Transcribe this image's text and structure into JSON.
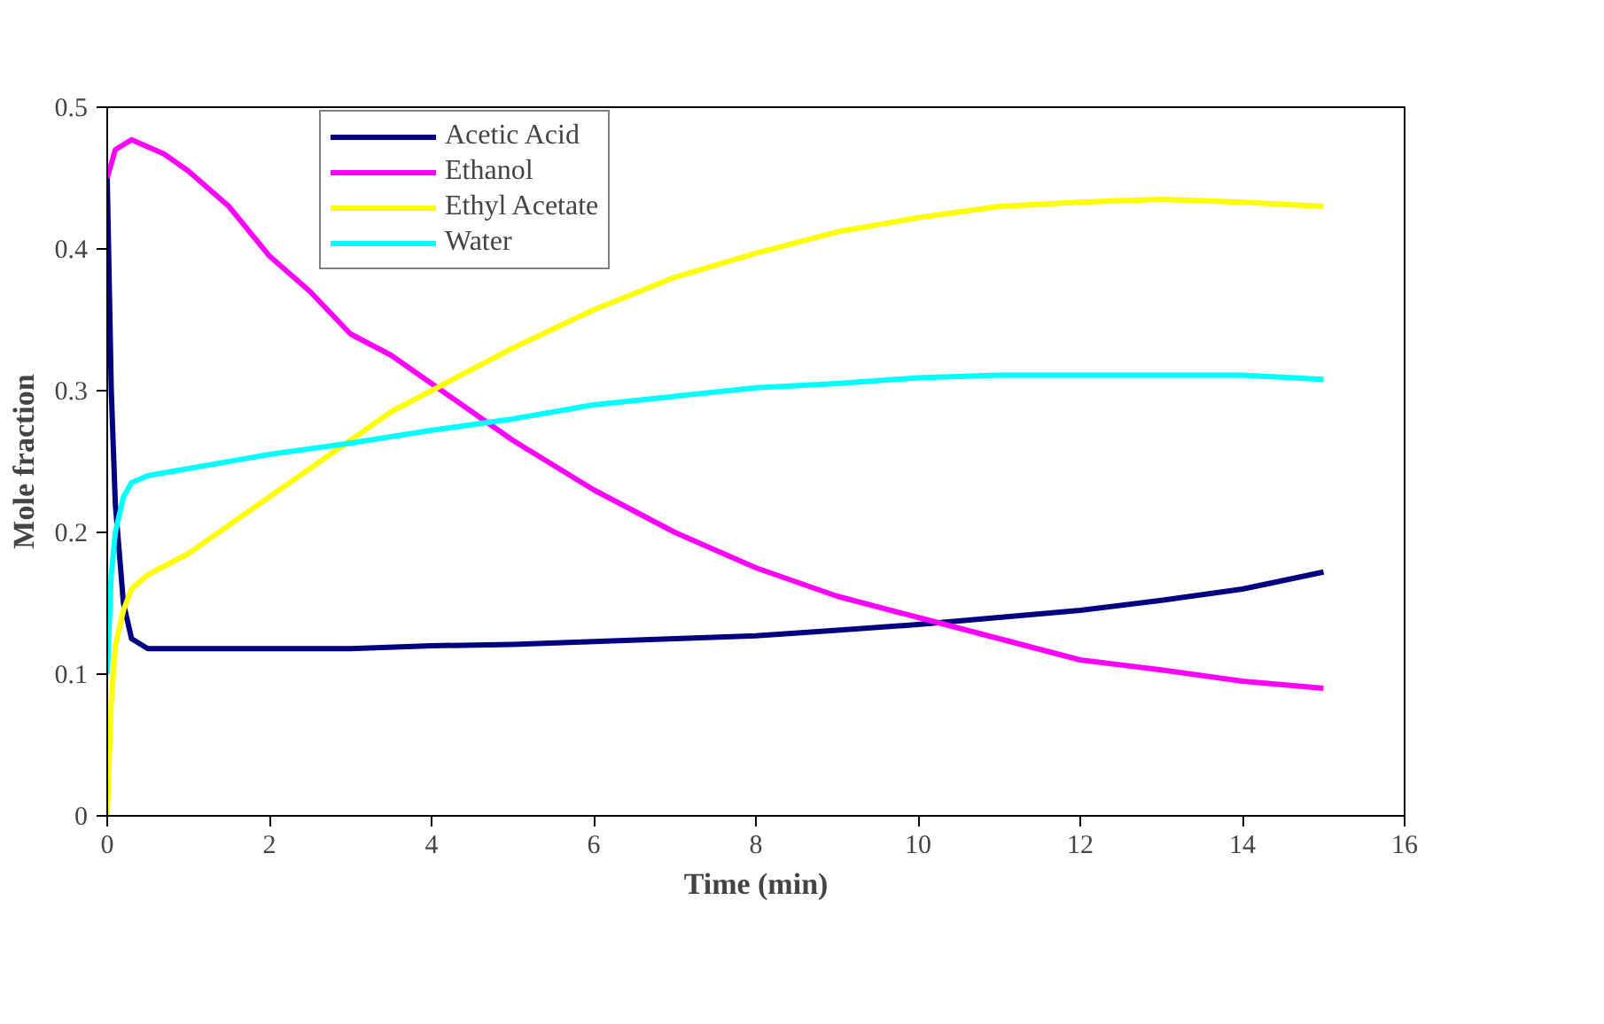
{
  "chart_data": {
    "type": "line",
    "xlabel": "Time (min)",
    "ylabel": "Mole fraction",
    "xlim": [
      0,
      16
    ],
    "xticks": [
      0,
      2,
      4,
      6,
      8,
      10,
      12,
      14,
      16
    ],
    "ylim": [
      0,
      0.5
    ],
    "yticks": [
      0,
      0.1,
      0.2,
      0.3,
      0.4,
      0.5
    ],
    "grid": false,
    "legend": "top left",
    "line_style": "solid",
    "marker": "none",
    "series": [
      {
        "name": "Acetic Acid",
        "color": "#000080",
        "x": [
          0,
          0.05,
          0.1,
          0.2,
          0.3,
          0.5,
          1,
          2,
          3,
          4,
          5,
          6,
          7,
          8,
          9,
          10,
          11,
          12,
          13,
          14,
          15
        ],
        "values": [
          0.45,
          0.3,
          0.22,
          0.15,
          0.125,
          0.118,
          0.118,
          0.118,
          0.118,
          0.12,
          0.121,
          0.123,
          0.125,
          0.127,
          0.131,
          0.135,
          0.14,
          0.145,
          0.152,
          0.16,
          0.172
        ]
      },
      {
        "name": "Ethanol",
        "color": "#ff00ff",
        "x": [
          0,
          0.1,
          0.3,
          0.7,
          1,
          1.5,
          2,
          2.5,
          3,
          3.5,
          4,
          4.5,
          5,
          6,
          7,
          8,
          9,
          10,
          11,
          12,
          13,
          14,
          15
        ],
        "values": [
          0.45,
          0.47,
          0.477,
          0.467,
          0.455,
          0.43,
          0.395,
          0.37,
          0.34,
          0.325,
          0.305,
          0.285,
          0.265,
          0.23,
          0.2,
          0.175,
          0.155,
          0.14,
          0.125,
          0.11,
          0.103,
          0.095,
          0.09
        ]
      },
      {
        "name": "Ethyl Acetate",
        "color": "#ffff00",
        "x": [
          0,
          0.05,
          0.1,
          0.2,
          0.3,
          0.5,
          1,
          1.5,
          2,
          2.5,
          3,
          3.5,
          4,
          5,
          6,
          7,
          8,
          9,
          10,
          11,
          12,
          13,
          14,
          15
        ],
        "values": [
          0,
          0.08,
          0.12,
          0.145,
          0.16,
          0.17,
          0.185,
          0.205,
          0.225,
          0.245,
          0.265,
          0.285,
          0.3,
          0.33,
          0.357,
          0.38,
          0.397,
          0.412,
          0.422,
          0.43,
          0.433,
          0.435,
          0.433,
          0.43
        ]
      },
      {
        "name": "Water",
        "color": "#00ffff",
        "x": [
          0,
          0.05,
          0.1,
          0.2,
          0.3,
          0.5,
          1,
          2,
          3,
          4,
          5,
          6,
          7,
          8,
          9,
          10,
          11,
          12,
          13,
          14,
          15
        ],
        "values": [
          0.1,
          0.17,
          0.2,
          0.225,
          0.235,
          0.24,
          0.245,
          0.255,
          0.263,
          0.272,
          0.28,
          0.29,
          0.296,
          0.302,
          0.305,
          0.309,
          0.311,
          0.311,
          0.311,
          0.311,
          0.308
        ]
      }
    ]
  }
}
